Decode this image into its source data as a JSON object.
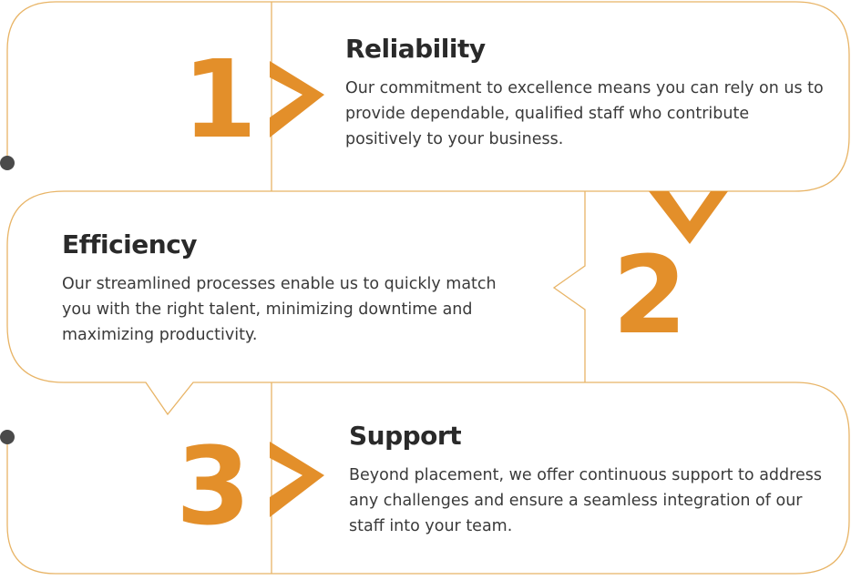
{
  "steps": [
    {
      "number": "1",
      "title": "Reliability",
      "description": "Our commitment to excellence means you can rely on us to provide dependable, qualified staff who contribute positively to your business."
    },
    {
      "number": "2",
      "title": "Efficiency",
      "description": "Our streamlined processes enable us to quickly match you with the right talent, minimizing downtime and maximizing productivity."
    },
    {
      "number": "3",
      "title": "Support",
      "description": "Beyond placement, we offer continuous support to address any challenges and ensure a seamless integration of our staff into your team."
    }
  ],
  "colors": {
    "accent": "#e38f2a",
    "outline": "#e8b466",
    "heading": "#2a2a2a",
    "body_text": "#3a3a3a",
    "dot": "#4a4a4a"
  },
  "icons": [
    "chevron-right-icon",
    "chevron-down-icon",
    "timeline-dot-icon"
  ]
}
